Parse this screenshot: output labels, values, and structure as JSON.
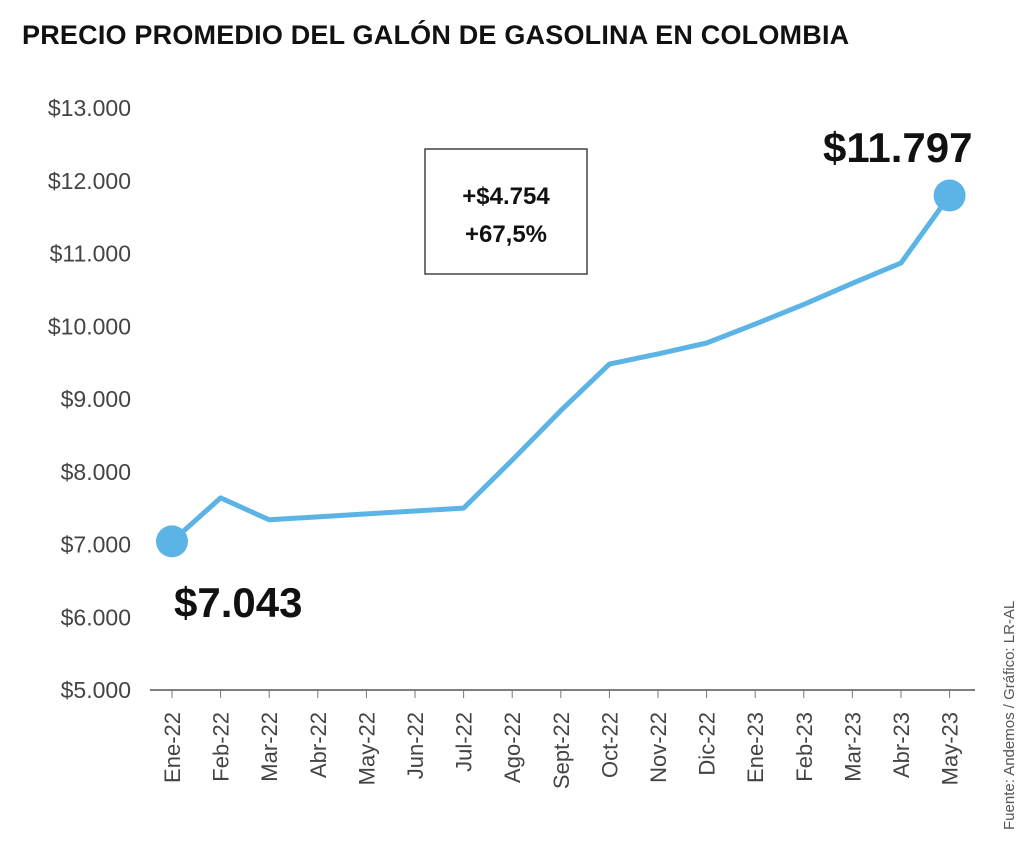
{
  "chart_data": {
    "type": "line",
    "title": "PRECIO PROMEDIO DEL GALÓN DE GASOLINA EN COLOMBIA",
    "categories": [
      "Ene-22",
      "Feb-22",
      "Mar-22",
      "Abr-22",
      "May-22",
      "Jun-22",
      "Jul-22",
      "Ago-22",
      "Sept-22",
      "Oct-22",
      "Nov-22",
      "Dic-22",
      "Ene-23",
      "Feb-23",
      "Mar-23",
      "Abr-23",
      "May-23"
    ],
    "values": [
      7043,
      7640,
      7340,
      7380,
      7420,
      7460,
      7500,
      8160,
      8840,
      9480,
      9620,
      9770,
      10030,
      10300,
      10590,
      10870,
      11797
    ],
    "yticks": [
      "$13.000",
      "$12.000",
      "$11.000",
      "$10.000",
      "$9.000",
      "$8.000",
      "$7.000",
      "$6.000",
      "$5.000"
    ],
    "ylim": [
      5000,
      13000
    ],
    "grid": false,
    "line_color": "#5bb4e5",
    "start_label": "$7.043",
    "end_label": "$11.797",
    "annotation": [
      "+$4.754",
      "+67,5%"
    ],
    "source": "Fuente: Andemos / Gráfico: LR-AL"
  }
}
